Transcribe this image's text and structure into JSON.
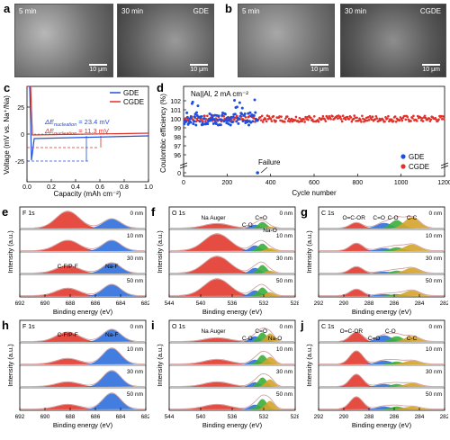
{
  "panels": {
    "a": {
      "label": "a",
      "images": [
        {
          "time": "5 min",
          "tag": "",
          "scale": "10 μm"
        },
        {
          "time": "30 min",
          "tag": "GDE",
          "scale": "10 μm"
        }
      ]
    },
    "b": {
      "label": "b",
      "images": [
        {
          "time": "5 min",
          "tag": "",
          "scale": "10 μm"
        },
        {
          "time": "30 min",
          "tag": "CGDE",
          "scale": "10 μm"
        }
      ]
    }
  },
  "colors": {
    "gde": "#1f4fe0",
    "cgde": "#e0312a",
    "fit_blue": "#2f6fdc",
    "fit_red": "#e23a2f",
    "fit_green": "#3cae3c",
    "fit_orange": "#d4a32a"
  },
  "chart_data": [
    {
      "id": "c",
      "label": "c",
      "type": "line",
      "xlabel": "Capacity (mAh cm⁻²)",
      "ylabel": "Voltage (mV vs. Na⁺/Na)",
      "xlim": [
        0,
        1.0
      ],
      "ylim": [
        -40,
        40
      ],
      "xticks": [
        "0.0",
        "0.2",
        "0.4",
        "0.6",
        "0.8",
        "1.0"
      ],
      "yticks": [
        "-25",
        "0",
        "25"
      ],
      "series": [
        {
          "name": "GDE"
        },
        {
          "name": "CGDE"
        }
      ],
      "annotations": [
        "ΔE",
        "nucleation",
        " = 23.4 mV",
        "ΔE",
        "nucleation",
        " = 11.3 mV"
      ]
    },
    {
      "id": "d",
      "label": "d",
      "type": "scatter",
      "title": "Na||Al, 2 mA cm⁻²",
      "xlabel": "Cycle number",
      "ylabel": "Coulombic efficiency (%)",
      "xlim": [
        0,
        1200
      ],
      "yticks": [
        "0",
        "96",
        "97",
        "98",
        "99",
        "100",
        "101",
        "102"
      ],
      "xticks": [
        "0",
        "200",
        "400",
        "600",
        "800",
        "1000",
        "1200"
      ],
      "series": [
        {
          "name": "GDE"
        },
        {
          "name": "CGDE"
        }
      ],
      "annotation": "Failure",
      "failure_cycle": 340
    }
  ],
  "xps": {
    "xlabel": "Binding energy (eV)",
    "ylabel": "Intensity (a.u.)",
    "depths": [
      "0 nm",
      "10 nm",
      "30 nm",
      "50 nm"
    ],
    "panels": [
      {
        "id": "e",
        "label": "e",
        "element": "F 1s",
        "xticks": [
          "692",
          "690",
          "688",
          "686",
          "684",
          "682"
        ],
        "labels": [
          "C-F/P-F",
          "Na-F"
        ]
      },
      {
        "id": "f",
        "label": "f",
        "element": "O 1s",
        "xticks": [
          "544",
          "540",
          "536",
          "532",
          "528"
        ],
        "labels": [
          "Na Auger",
          "C-O",
          "C=O",
          "Na-O"
        ]
      },
      {
        "id": "g",
        "label": "g",
        "element": "C 1s",
        "xticks": [
          "292",
          "290",
          "288",
          "286",
          "284",
          "282"
        ],
        "labels": [
          "O=C-OR",
          "C=O",
          "C-O",
          "C-C"
        ]
      },
      {
        "id": "h",
        "label": "h",
        "element": "F 1s",
        "xticks": [
          "692",
          "690",
          "688",
          "686",
          "684",
          "682"
        ],
        "labels": [
          "C-F/P-F",
          "Na-F"
        ]
      },
      {
        "id": "i",
        "label": "i",
        "element": "O 1s",
        "xticks": [
          "544",
          "540",
          "536",
          "532",
          "528"
        ],
        "labels": [
          "Na Auger",
          "C-O",
          "C=O",
          "Na-O"
        ]
      },
      {
        "id": "j",
        "label": "j",
        "element": "C 1s",
        "xticks": [
          "292",
          "290",
          "288",
          "286",
          "284",
          "282"
        ],
        "labels": [
          "O=C-OR",
          "C=O",
          "C-O",
          "C-C"
        ]
      }
    ]
  }
}
